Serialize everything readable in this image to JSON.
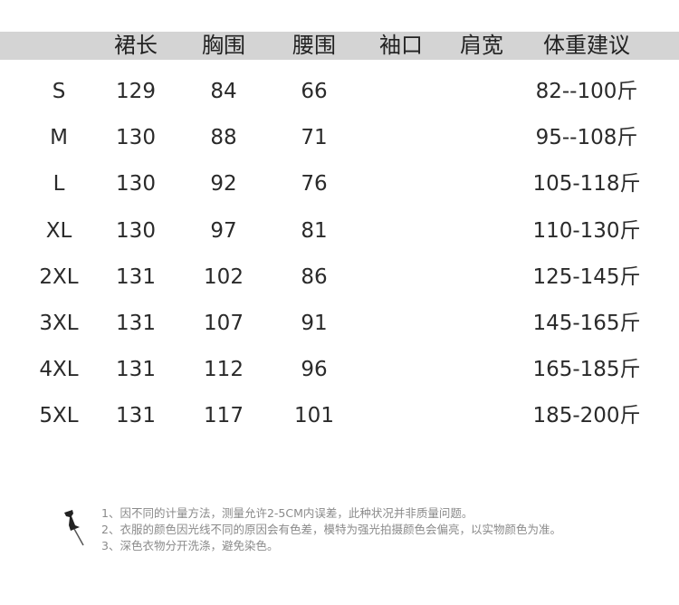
{
  "headers": [
    "裙长",
    "胸围",
    "腰围",
    "袖口",
    "肩宽",
    "体重建议"
  ],
  "rows": [
    {
      "size": "S",
      "skirt_length": "129",
      "bust": "84",
      "waist": "66",
      "cuff": "",
      "shoulder": "",
      "weight": "82--100斤"
    },
    {
      "size": "M",
      "skirt_length": "130",
      "bust": "88",
      "waist": "71",
      "cuff": "",
      "shoulder": "",
      "weight": "95--108斤"
    },
    {
      "size": "L",
      "skirt_length": "130",
      "bust": "92",
      "waist": "76",
      "cuff": "",
      "shoulder": "",
      "weight": "105-118斤"
    },
    {
      "size": "XL",
      "skirt_length": "130",
      "bust": "97",
      "waist": "81",
      "cuff": "",
      "shoulder": "",
      "weight": "110-130斤"
    },
    {
      "size": "2XL",
      "skirt_length": "131",
      "bust": "102",
      "waist": "86",
      "cuff": "",
      "shoulder": "",
      "weight": "125-145斤"
    },
    {
      "size": "3XL",
      "skirt_length": "131",
      "bust": "107",
      "waist": "91",
      "cuff": "",
      "shoulder": "",
      "weight": "145-165斤"
    },
    {
      "size": "4XL",
      "skirt_length": "131",
      "bust": "112",
      "waist": "96",
      "cuff": "",
      "shoulder": "",
      "weight": "165-185斤"
    },
    {
      "size": "5XL",
      "skirt_length": "131",
      "bust": "117",
      "waist": "101",
      "cuff": "",
      "shoulder": "",
      "weight": "185-200斤"
    }
  ],
  "notes": [
    "1、因不同的计量方法，测量允许2-5CM内误差，此种状况并非质量问题。",
    "2、衣服的颜色因光线不同的原因会有色差，模特为强光拍摄颜色会偏亮，以实物颜色为准。",
    "3、深色衣物分开洗涤，避免染色。"
  ],
  "icon": "pushpin-icon",
  "colors": {
    "header_bg": "#d4d4d4",
    "text": "#2a2a2a",
    "notes": "#8a8a8a"
  }
}
